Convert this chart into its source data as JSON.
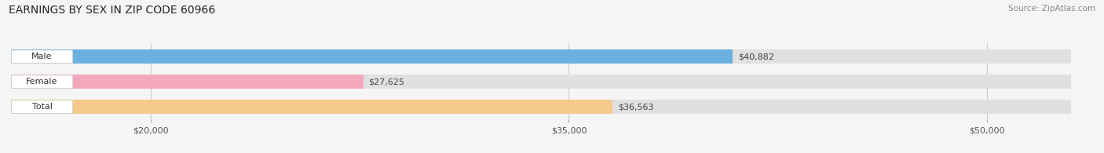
{
  "title": "EARNINGS BY SEX IN ZIP CODE 60966",
  "source": "Source: ZipAtlas.com",
  "categories": [
    "Male",
    "Female",
    "Total"
  ],
  "values": [
    40882,
    27625,
    36563
  ],
  "bar_colors": [
    "#6ab0e0",
    "#f4a8be",
    "#f5c98a"
  ],
  "background_color": "#f0f0f0",
  "bar_bg_color": "#e0e0e0",
  "xlim": [
    15000,
    53000
  ],
  "xticks": [
    20000,
    35000,
    50000
  ],
  "xtick_labels": [
    "$20,000",
    "$35,000",
    "$50,000"
  ],
  "value_labels": [
    "$40,882",
    "$27,625",
    "$36,563"
  ],
  "title_fontsize": 10,
  "bar_height": 0.55,
  "figsize": [
    14.06,
    1.95
  ],
  "dpi": 100
}
